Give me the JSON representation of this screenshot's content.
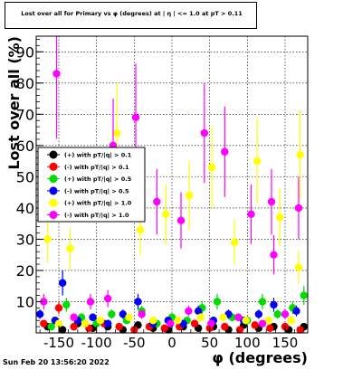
{
  "title": "Lost over all for Primary vs φ (degrees) at | η | <= 1.0 at pT > 0.11",
  "footer_date": "Sun Feb 20 13:56:20 2022",
  "chart_data": {
    "type": "scatter",
    "xlabel": "φ (degrees)",
    "ylabel": "Lost over all (%)",
    "xlim": [
      -180,
      180
    ],
    "ylim": [
      0,
      95
    ],
    "x_ticks": [
      -150,
      -100,
      -50,
      0,
      50,
      100,
      150
    ],
    "y_ticks": [
      10,
      20,
      30,
      40,
      50,
      60,
      70,
      80,
      90
    ],
    "grid": true,
    "legend_position": "left",
    "series": [
      {
        "name": "(+) with pT/|q| > 0.1",
        "color": "#000000",
        "points": [
          [
            -165,
            2
          ],
          [
            -145,
            1
          ],
          [
            -125,
            3
          ],
          [
            -105,
            1.5
          ],
          [
            -85,
            2
          ],
          [
            -65,
            1
          ],
          [
            -45,
            2.5
          ],
          [
            -25,
            1.5
          ],
          [
            -5,
            1
          ],
          [
            15,
            2
          ],
          [
            35,
            1.5
          ],
          [
            55,
            2
          ],
          [
            75,
            1
          ],
          [
            95,
            2.5
          ],
          [
            115,
            1.5
          ],
          [
            135,
            2
          ],
          [
            155,
            1
          ],
          [
            175,
            2
          ]
        ]
      },
      {
        "name": "(-) with pT/|q| > 0.1",
        "color": "#ff0000",
        "points": [
          [
            -170,
            3
          ],
          [
            -150,
            8
          ],
          [
            -130,
            2
          ],
          [
            -110,
            1.5
          ],
          [
            -90,
            3
          ],
          [
            -70,
            2
          ],
          [
            -50,
            1
          ],
          [
            -30,
            2
          ],
          [
            -10,
            1.5
          ],
          [
            10,
            2
          ],
          [
            30,
            3
          ],
          [
            50,
            1.5
          ],
          [
            70,
            2
          ],
          [
            90,
            1
          ],
          [
            110,
            2.5
          ],
          [
            130,
            1.5
          ],
          [
            150,
            2
          ],
          [
            170,
            1
          ]
        ]
      },
      {
        "name": "(+) with pT/|q| > 0.5",
        "color": "#00dd00",
        "points": [
          [
            -160,
            2
          ],
          [
            -140,
            9
          ],
          [
            -120,
            5
          ],
          [
            -100,
            3
          ],
          [
            -80,
            6
          ],
          [
            -60,
            4
          ],
          [
            -40,
            7
          ],
          [
            -20,
            3
          ],
          [
            0,
            5
          ],
          [
            20,
            4
          ],
          [
            40,
            8
          ],
          [
            60,
            10
          ],
          [
            80,
            5
          ],
          [
            100,
            4
          ],
          [
            120,
            10
          ],
          [
            140,
            6
          ],
          [
            160,
            8
          ],
          [
            175,
            12
          ]
        ]
      },
      {
        "name": "(-) with pT/|q| > 0.5",
        "color": "#0000ff",
        "points": [
          [
            -175,
            6
          ],
          [
            -155,
            4
          ],
          [
            -145,
            16
          ],
          [
            -125,
            4
          ],
          [
            -105,
            5
          ],
          [
            -85,
            3
          ],
          [
            -65,
            6
          ],
          [
            -45,
            10
          ],
          [
            -25,
            3
          ],
          [
            -5,
            4
          ],
          [
            15,
            3
          ],
          [
            35,
            7
          ],
          [
            55,
            4
          ],
          [
            75,
            6
          ],
          [
            95,
            4
          ],
          [
            115,
            6
          ],
          [
            135,
            9
          ],
          [
            165,
            7
          ]
        ]
      },
      {
        "name": "(+) with pT/|q| > 1.0",
        "color": "#ffff00",
        "points": [
          [
            -165,
            30
          ],
          [
            -150,
            3
          ],
          [
            -135,
            27
          ],
          [
            -115,
            3
          ],
          [
            -95,
            4
          ],
          [
            -73,
            64
          ],
          [
            -57,
            5
          ],
          [
            -42,
            33
          ],
          [
            -25,
            4
          ],
          [
            -8,
            38
          ],
          [
            8,
            4
          ],
          [
            23,
            44
          ],
          [
            38,
            5
          ],
          [
            53,
            53
          ],
          [
            68,
            5
          ],
          [
            83,
            29
          ],
          [
            98,
            4
          ],
          [
            113,
            55
          ],
          [
            128,
            4
          ],
          [
            143,
            37
          ],
          [
            158,
            4
          ],
          [
            170,
            57
          ],
          [
            168,
            21
          ]
        ]
      },
      {
        "name": "(-) with pT/|q| > 1.0",
        "color": "#ff00ff",
        "points": [
          [
            -170,
            10
          ],
          [
            -153,
            83
          ],
          [
            -130,
            5
          ],
          [
            -108,
            10
          ],
          [
            -85,
            11
          ],
          [
            -78,
            60
          ],
          [
            -48,
            69
          ],
          [
            -40,
            6
          ],
          [
            -20,
            42
          ],
          [
            -2,
            3
          ],
          [
            12,
            36
          ],
          [
            22,
            7
          ],
          [
            43,
            64
          ],
          [
            52,
            3
          ],
          [
            70,
            58
          ],
          [
            88,
            5
          ],
          [
            105,
            38
          ],
          [
            120,
            3
          ],
          [
            132,
            42
          ],
          [
            135,
            25
          ],
          [
            150,
            6
          ],
          [
            168,
            40
          ]
        ]
      }
    ]
  }
}
